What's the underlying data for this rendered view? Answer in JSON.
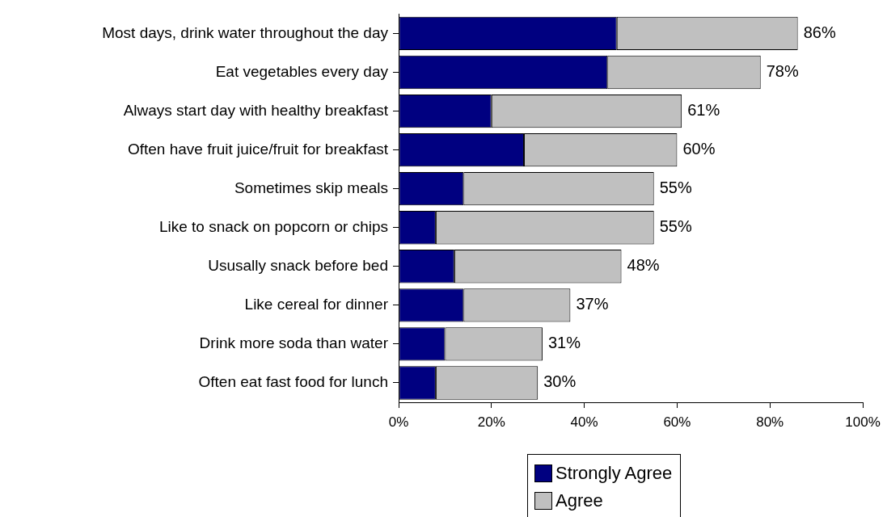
{
  "chart_data": {
    "type": "bar",
    "orientation": "horizontal",
    "stacked": true,
    "categories": [
      "Most days, drink water throughout the day",
      "Eat vegetables every day",
      "Always start day with healthy breakfast",
      "Often have fruit juice/fruit for breakfast",
      "Sometimes skip meals",
      "Like to snack on popcorn or chips",
      "Ususally snack before bed",
      "Like cereal for dinner",
      "Drink more soda than water",
      "Often eat fast food for lunch"
    ],
    "series": [
      {
        "name": "Strongly Agree",
        "color": "#000080",
        "values": [
          47,
          45,
          20,
          27,
          14,
          8,
          12,
          14,
          10,
          8
        ]
      },
      {
        "name": "Agree",
        "color": "#c0c0c0",
        "values": [
          39,
          33,
          41,
          33,
          41,
          47,
          36,
          23,
          21,
          22
        ]
      }
    ],
    "totals": [
      "86%",
      "78%",
      "61%",
      "60%",
      "55%",
      "55%",
      "48%",
      "37%",
      "31%",
      "30%"
    ],
    "xlim": [
      0,
      100
    ],
    "xticks": [
      {
        "value": 0,
        "label": "0%"
      },
      {
        "value": 20,
        "label": "20%"
      },
      {
        "value": 40,
        "label": "40%"
      },
      {
        "value": 60,
        "label": "60%"
      },
      {
        "value": 80,
        "label": "80%"
      },
      {
        "value": 100,
        "label": "100%"
      }
    ],
    "grid": false,
    "legend": "bottom"
  }
}
